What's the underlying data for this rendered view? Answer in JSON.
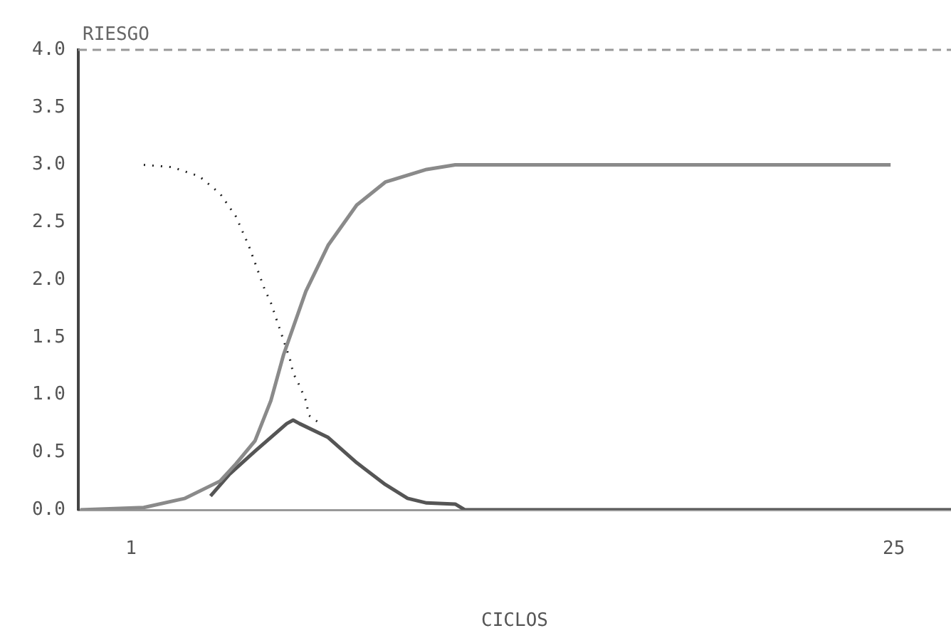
{
  "chart_data": {
    "type": "line",
    "xlabel": "CICLOS",
    "ylabel": "RIESGO",
    "xlim": [
      -0.66,
      26.8
    ],
    "xticks": [
      1,
      25
    ],
    "ylim": [
      0,
      4
    ],
    "yticks": [
      {
        "value": 0,
        "label": "0.0"
      },
      {
        "value": 0.5,
        "label": "0.5"
      },
      {
        "value": 1,
        "label": "1.0"
      },
      {
        "value": 1.5,
        "label": "1.5"
      },
      {
        "value": 2,
        "label": "2.0"
      },
      {
        "value": 2.5,
        "label": "2.5"
      },
      {
        "value": 3,
        "label": "3.0"
      },
      {
        "value": 3.5,
        "label": "3.5"
      },
      {
        "value": 4,
        "label": "4.0"
      }
    ],
    "grid": false,
    "legend": false,
    "marker": "none",
    "ref_lines": [
      {
        "axis": "y",
        "value": 4,
        "color": "#999999",
        "line_style": "dashed"
      }
    ],
    "series": [
      {
        "color": "#8a8a8a",
        "line_style": "solid",
        "x": [
          -0.6,
          1.4,
          2.7,
          3.8,
          4.3,
          4.9,
          5.4,
          5.8,
          6.5,
          7.2,
          8.1,
          9,
          10.3,
          11.2,
          15,
          20,
          24.9
        ],
        "values": [
          0,
          0.02,
          0.1,
          0.25,
          0.4,
          0.6,
          0.95,
          1.35,
          1.9,
          2.3,
          2.65,
          2.85,
          2.96,
          3,
          3,
          3,
          3
        ]
      },
      {
        "color": "#222222",
        "line_style": "dotted",
        "x": [
          1.4,
          2.3,
          3.15,
          3.8,
          4.3,
          4.7,
          5.2,
          5.4,
          6,
          6.1,
          6.3,
          6.5,
          6.6,
          6.8,
          7
        ],
        "values": [
          3,
          2.98,
          2.9,
          2.75,
          2.55,
          2.3,
          1.92,
          1.8,
          1.31,
          1.19,
          1.08,
          0.95,
          0.82,
          0.78,
          0.74
        ]
      },
      {
        "color": "#555555",
        "line_style": "solid",
        "x": [
          3.5,
          4.1,
          4.9,
          5.9,
          6.1,
          6.3,
          7.2,
          8.1,
          9,
          9.7,
          10.3,
          11.2,
          11.5,
          26.8
        ],
        "values": [
          0.12,
          0.31,
          0.51,
          0.75,
          0.78,
          0.75,
          0.63,
          0.41,
          0.22,
          0.1,
          0.06,
          0.05,
          0,
          0
        ]
      }
    ]
  }
}
